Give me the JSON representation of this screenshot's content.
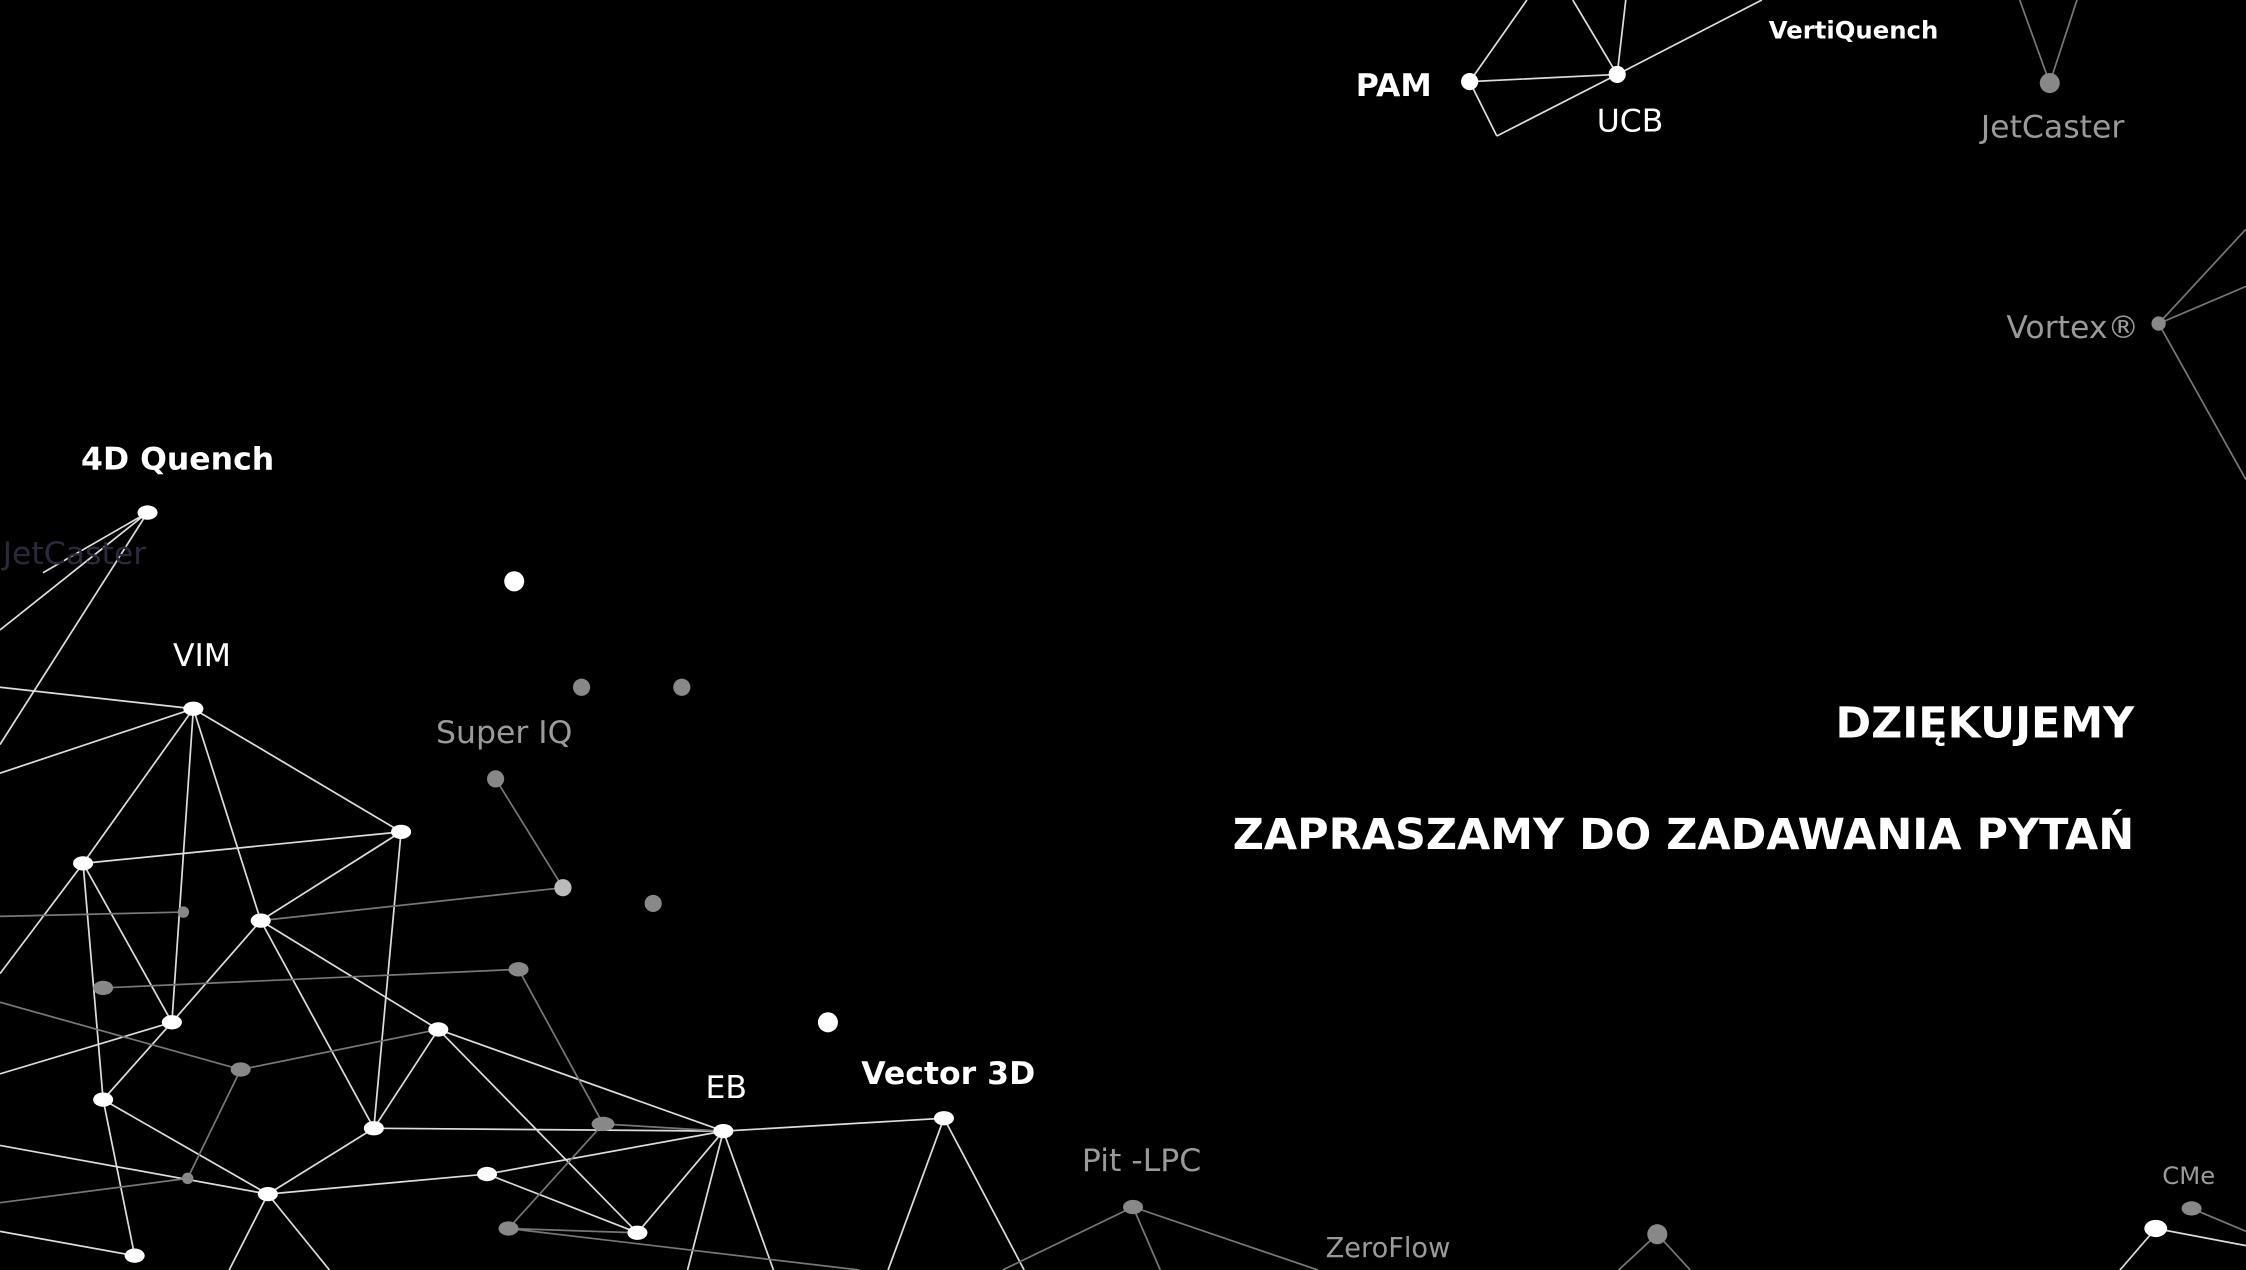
{
  "labels": [
    "PAM",
    "UCB",
    "VertiQuench",
    "JetCaster",
    "Vortex®",
    "4D Quench",
    "JetCaster",
    "VIM",
    "Super IQ",
    "EB",
    "Vector 3D",
    "Pit -LPC",
    "ZeroFlow",
    "CMe"
  ],
  "heading": "DZIĘKUJEMY",
  "subheading": "ZAPRASZAMY DO ZADAWANIA PYTAŃ"
}
